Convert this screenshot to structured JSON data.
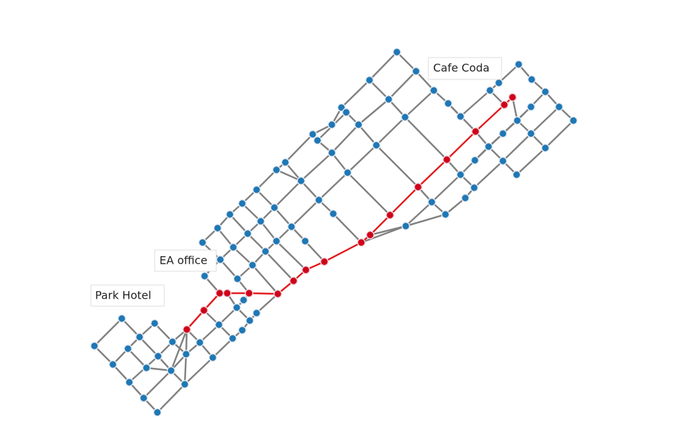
{
  "labels": [
    "Park Hotel",
    "EA office",
    "Cafe Coda"
  ]
}
